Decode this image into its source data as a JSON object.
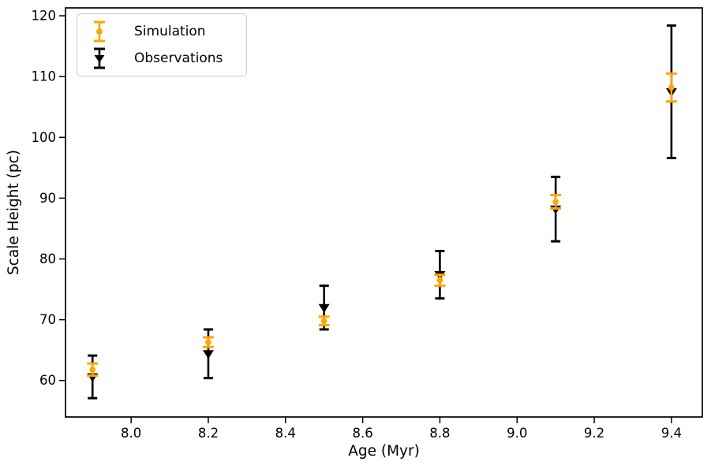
{
  "chart_data": {
    "type": "scatter",
    "subtype": "errorbar",
    "title": "",
    "xlabel": "Age (Myr)",
    "ylabel": "Scale Height (pc)",
    "x": [
      7.9,
      8.2,
      8.5,
      8.8,
      9.1,
      9.4
    ],
    "series": [
      {
        "name": "Simulation",
        "color": "#FFA500",
        "marker": "dot",
        "values": [
          61.8,
          66.3,
          69.8,
          76.5,
          89.4,
          108.2
        ],
        "yerr": [
          1.0,
          0.8,
          0.7,
          0.9,
          1.1,
          2.3
        ]
      },
      {
        "name": "Observations",
        "color": "#000000",
        "marker": "triangle-down",
        "values": [
          60.6,
          64.4,
          72.0,
          77.4,
          88.2,
          107.5
        ],
        "yerr": [
          3.5,
          4.0,
          3.6,
          3.9,
          5.3,
          10.9
        ]
      }
    ],
    "xlim": [
      7.83,
      9.48
    ],
    "ylim": [
      54,
      121.3
    ],
    "xticks": [
      8.0,
      8.2,
      8.4,
      8.6,
      8.8,
      9.0,
      9.2,
      9.4
    ],
    "yticks": [
      60,
      70,
      80,
      90,
      100,
      110,
      120
    ],
    "grid": false,
    "legend_position": "upper-left",
    "axis_color": "#000000",
    "background_color": "#ffffff"
  }
}
